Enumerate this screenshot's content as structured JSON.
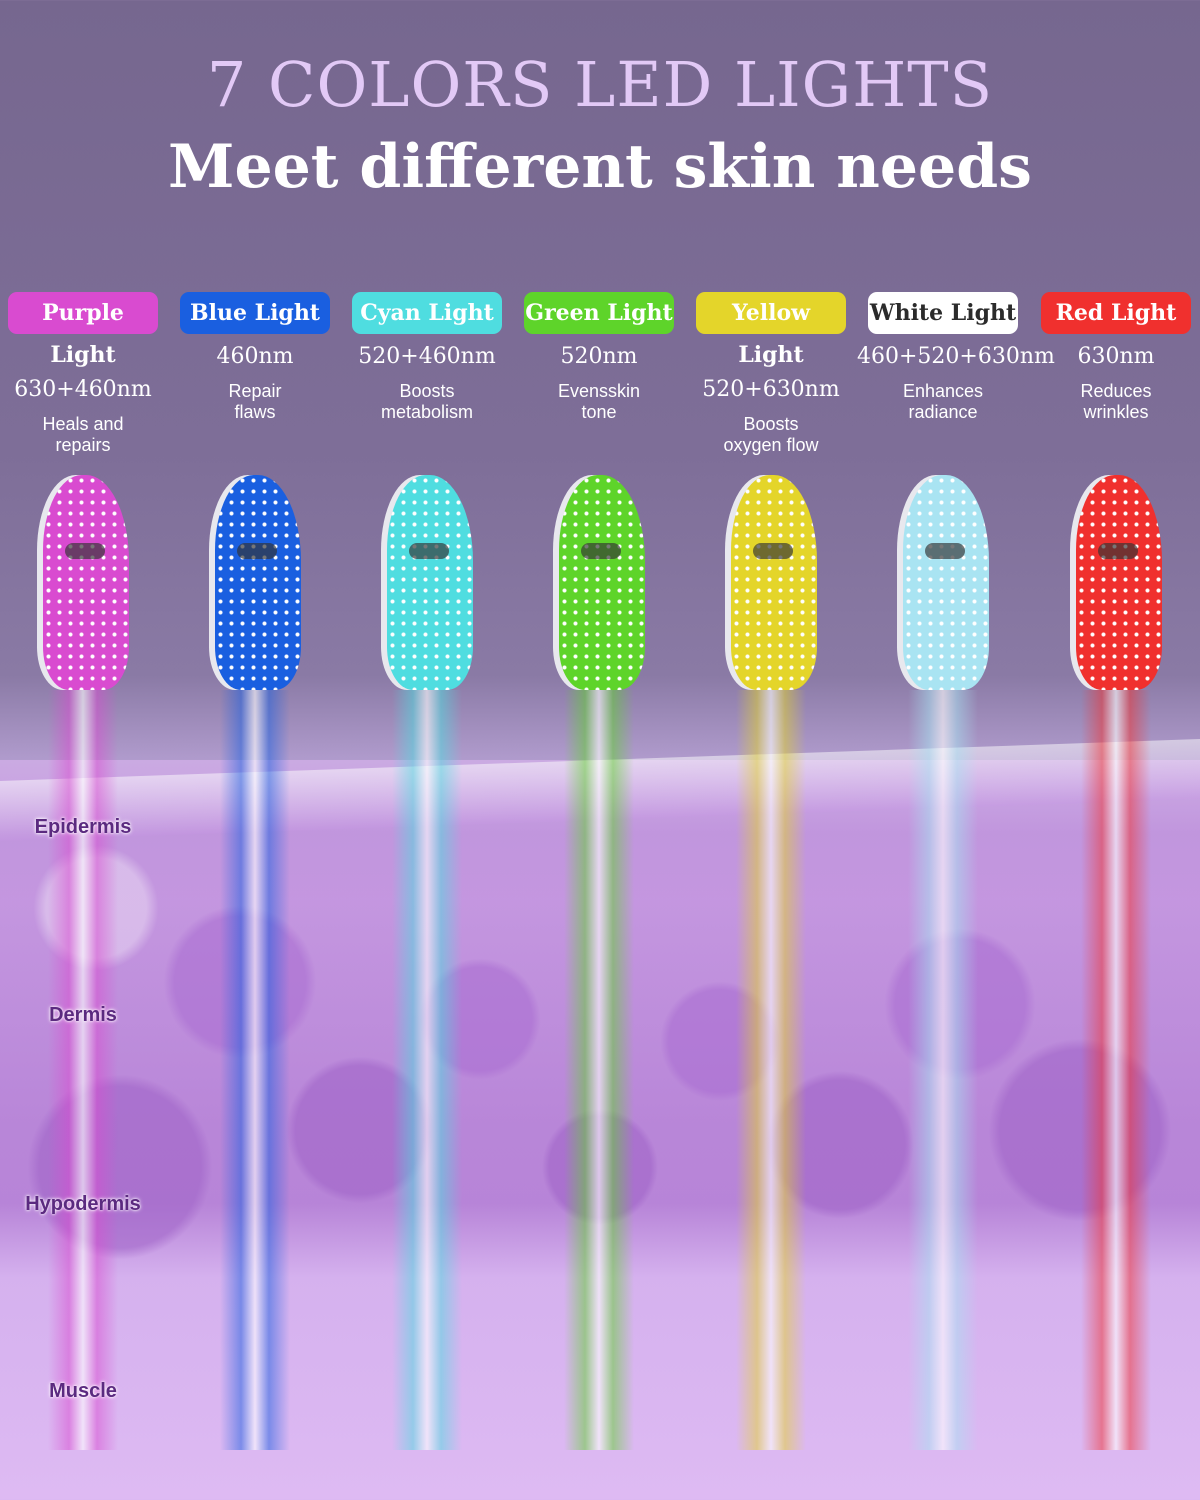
{
  "header": {
    "title": "7 COLORS LED LIGHTS",
    "subtitle": "Meet different skin needs"
  },
  "lights": [
    {
      "label": "Purple Light",
      "wavelength": "630+460nm",
      "benefit_line1": "Heals and",
      "benefit_line2": "repairs",
      "color": "#d94bd0",
      "text_color": "#ffffff"
    },
    {
      "label": "Blue Light",
      "wavelength": "460nm",
      "benefit_line1": "Repair",
      "benefit_line2": "flaws",
      "color": "#1a5fe0",
      "text_color": "#ffffff"
    },
    {
      "label": "Cyan Light",
      "wavelength": "520+460nm",
      "benefit_line1": "Boosts",
      "benefit_line2": "metabolism",
      "color": "#4fdde0",
      "text_color": "#ffffff"
    },
    {
      "label": "Green Light",
      "wavelength": "520nm",
      "benefit_line1": "Evensskin",
      "benefit_line2": "tone",
      "color": "#5ed42a",
      "text_color": "#ffffff"
    },
    {
      "label": "Yellow Light",
      "wavelength": "520+630nm",
      "benefit_line1": "Boosts",
      "benefit_line2": "oxygen flow",
      "color": "#e4d52a",
      "text_color": "#ffffff"
    },
    {
      "label": "White Light",
      "wavelength": "460+520+630nm",
      "benefit_line1": "Enhances",
      "benefit_line2": "radiance",
      "color": "#ffffff",
      "text_color": "#2b2b2b",
      "mask_color": "#a9e4f2"
    },
    {
      "label": "Red Light",
      "wavelength": "630nm",
      "benefit_line1": "Reduces",
      "benefit_line2": "wrinkles",
      "color": "#f0302e",
      "text_color": "#ffffff"
    }
  ],
  "skin_layers": [
    "Epidermis",
    "Dermis",
    "Hypodermis",
    "Muscle"
  ]
}
